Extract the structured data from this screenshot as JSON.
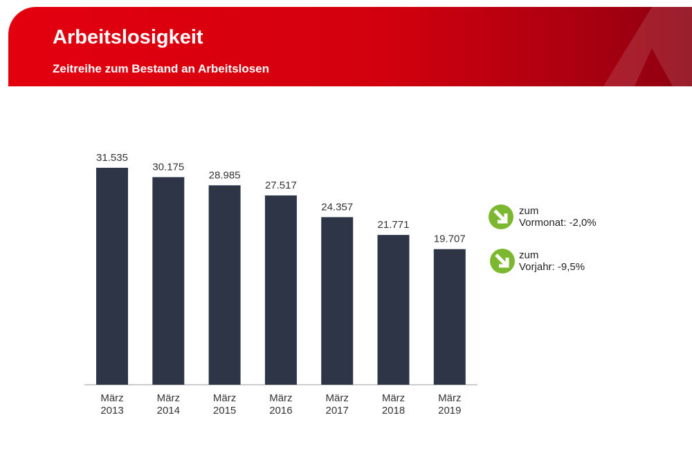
{
  "chart_data": {
    "type": "bar",
    "title": "Arbeitslosigkeit",
    "subtitle": "Zeitreihe zum Bestand an Arbeitslosen",
    "categories": [
      "März\n2013",
      "März\n2014",
      "März\n2015",
      "März\n2016",
      "März\n2017",
      "März\n2018",
      "März\n2019"
    ],
    "values": [
      31535,
      30175,
      28985,
      27517,
      24357,
      21771,
      19707
    ],
    "value_labels": [
      "31.535",
      "30.175",
      "28.985",
      "27.517",
      "24.357",
      "21.771",
      "19.707"
    ],
    "color": "#2d3547",
    "annotations": [
      "zum\nVormonat: -2,0%",
      "zum\nVorjahr: -9,5%"
    ]
  }
}
